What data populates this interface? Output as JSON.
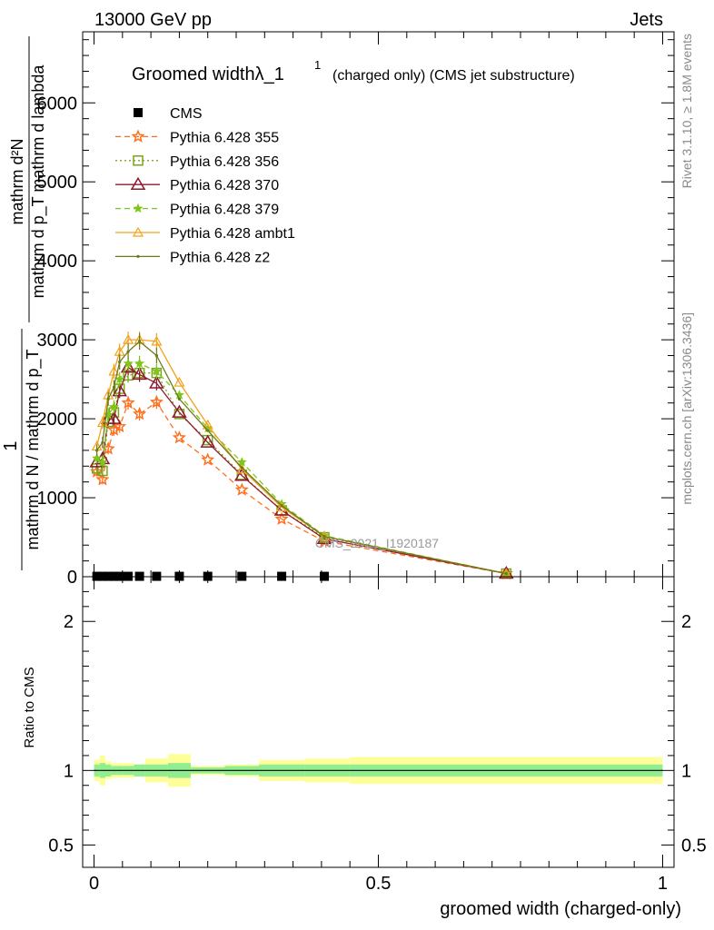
{
  "header": {
    "left": "13000 GeV pp",
    "right": "Jets"
  },
  "side": {
    "rivet": "Rivet 3.1.10, ≥ 1.8M events",
    "mcplots": "mcplots.cern.ch [arXiv:1306.3436]"
  },
  "watermark": "CMS_2021_I1920187",
  "top_plot": {
    "title_main": "Groomed widthλ_1",
    "title_sup": "1",
    "title_rest": "(charged only) (CMS jet substructure)",
    "ylabel_num": "1",
    "ylabel_den": "mathrm d N / mathrm d p_T",
    "ylabel_frac_num": "mathrm d²N",
    "ylabel_frac_den": "mathrm d p_T mathrm d lambda"
  },
  "ratio_plot": {
    "ylabel": "Ratio to CMS"
  },
  "colors": {
    "p355": "#ff6f1e",
    "p356": "#7aa61a",
    "p370": "#8c1a2c",
    "p379": "#7ec71a",
    "ambt1": "#f2a21e",
    "z2": "#6b7a1a",
    "band_inner": "#90ee90",
    "band_outer": "#ffff99"
  },
  "chart_data": [
    {
      "type": "line",
      "xlabel": "groomed width (charged-only)",
      "xlim": [
        -0.02,
        1.02
      ],
      "ylim": [
        0,
        6900
      ],
      "x_ticks": [
        0,
        0.5,
        1
      ],
      "x_tick_labels": [
        "0",
        "0.5",
        "1"
      ],
      "y_ticks": [
        0,
        1000,
        2000,
        3000,
        4000,
        5000,
        6000
      ],
      "y_tick_labels": [
        "0",
        "1000",
        "2000",
        "3000",
        "4000",
        "5000",
        "6000"
      ],
      "legend_position": "top-left",
      "series": [
        {
          "name": "CMS",
          "style": "data",
          "x": [
            0.005,
            0.015,
            0.025,
            0.035,
            0.045,
            0.06,
            0.08,
            0.11,
            0.15,
            0.2,
            0.26,
            0.33,
            0.405
          ],
          "y": [
            5,
            5,
            5,
            5,
            5,
            5,
            5,
            5,
            5,
            5,
            5,
            5,
            5
          ]
        },
        {
          "name": "Pythia 6.428 355",
          "style": "star-dashed",
          "x": [
            0.005,
            0.015,
            0.025,
            0.035,
            0.045,
            0.06,
            0.08,
            0.11,
            0.15,
            0.2,
            0.26,
            0.33,
            0.405,
            0.725
          ],
          "y": [
            1330,
            1230,
            1620,
            1860,
            1900,
            2200,
            2060,
            2210,
            1760,
            1480,
            1100,
            730,
            450,
            40
          ]
        },
        {
          "name": "Pythia 6.428 356",
          "style": "square-dotted",
          "x": [
            0.005,
            0.015,
            0.025,
            0.035,
            0.045,
            0.06,
            0.08,
            0.11,
            0.15,
            0.2,
            0.26,
            0.33,
            0.405,
            0.725
          ],
          "y": [
            1370,
            1340,
            1960,
            2080,
            2380,
            2550,
            2580,
            2580,
            2060,
            1730,
            1290,
            840,
            500,
            40
          ]
        },
        {
          "name": "Pythia 6.428 370",
          "style": "triangle-solid",
          "x": [
            0.005,
            0.015,
            0.025,
            0.035,
            0.045,
            0.06,
            0.08,
            0.11,
            0.15,
            0.2,
            0.26,
            0.33,
            0.405,
            0.725
          ],
          "y": [
            1450,
            1490,
            2000,
            2000,
            2350,
            2650,
            2560,
            2450,
            2080,
            1700,
            1280,
            840,
            480,
            40
          ]
        },
        {
          "name": "Pythia 6.428 379",
          "style": "star-dashed",
          "x": [
            0.005,
            0.015,
            0.025,
            0.035,
            0.045,
            0.06,
            0.08,
            0.11,
            0.15,
            0.2,
            0.26,
            0.33,
            0.405,
            0.725
          ],
          "y": [
            1500,
            1450,
            2050,
            2150,
            2500,
            2700,
            2700,
            2600,
            2300,
            1880,
            1450,
            920,
            520,
            40
          ]
        },
        {
          "name": "Pythia 6.428 ambt1",
          "style": "triangle-solid",
          "x": [
            0.005,
            0.015,
            0.025,
            0.035,
            0.045,
            0.06,
            0.08,
            0.11,
            0.15,
            0.2,
            0.26,
            0.33,
            0.405,
            0.725
          ],
          "y": [
            1650,
            1950,
            2300,
            2600,
            2850,
            3000,
            3000,
            2980,
            2460,
            1920,
            1360,
            880,
            510,
            40
          ]
        },
        {
          "name": "Pythia 6.428 z2",
          "style": "dot-solid",
          "x": [
            0.005,
            0.015,
            0.025,
            0.035,
            0.045,
            0.06,
            0.08,
            0.11,
            0.15,
            0.2,
            0.26,
            0.33,
            0.405,
            0.725
          ],
          "y": [
            1600,
            1700,
            2250,
            2400,
            2720,
            2850,
            2980,
            2800,
            2250,
            1850,
            1380,
            900,
            510,
            40
          ]
        }
      ]
    },
    {
      "type": "area",
      "ylabel": "Ratio to CMS",
      "xlim": [
        -0.02,
        1.02
      ],
      "ylim": [
        0.35,
        2.3
      ],
      "y_ticks": [
        0.5,
        1,
        2
      ],
      "y_tick_labels": [
        "0.5",
        "1",
        "2"
      ],
      "bands": {
        "edges": [
          0,
          0.01,
          0.02,
          0.03,
          0.04,
          0.05,
          0.07,
          0.09,
          0.13,
          0.17,
          0.23,
          0.29,
          0.37,
          0.45,
          1.0
        ],
        "inner_lo": [
          0.96,
          0.95,
          0.96,
          0.97,
          0.97,
          0.97,
          0.96,
          0.96,
          0.95,
          0.98,
          0.97,
          0.96,
          0.96,
          0.96
        ],
        "inner_hi": [
          1.04,
          1.05,
          1.04,
          1.03,
          1.03,
          1.03,
          1.04,
          1.04,
          1.05,
          1.02,
          1.03,
          1.04,
          1.04,
          1.04
        ],
        "outer_lo": [
          0.93,
          0.9,
          0.94,
          0.95,
          0.95,
          0.95,
          0.96,
          0.92,
          0.89,
          0.97,
          0.96,
          0.93,
          0.92,
          0.91
        ],
        "outer_hi": [
          1.07,
          1.1,
          1.06,
          1.05,
          1.05,
          1.05,
          1.04,
          1.08,
          1.11,
          1.03,
          1.04,
          1.07,
          1.08,
          1.09
        ]
      }
    }
  ]
}
